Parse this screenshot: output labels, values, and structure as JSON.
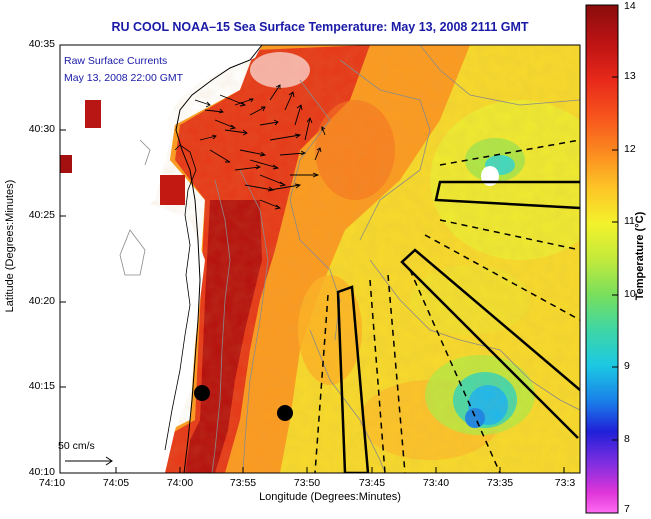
{
  "title": "RU COOL  NOAA–15  Sea Surface Temperature:  May 13, 2008 2111 GMT",
  "legend": {
    "currents_label": "Raw Surface Currents",
    "currents_time": "May 13, 2008 22:00 GMT",
    "scale_label": "50 cm/s"
  },
  "axes": {
    "x_label": "Longitude (Degrees:Minutes)",
    "y_label": "Latitude (Degrees:Minutes)",
    "x_ticks": [
      "74:10",
      "74:05",
      "74:00",
      "73:55",
      "73:50",
      "73:45",
      "73:40",
      "73:35",
      "73:3"
    ],
    "y_ticks": [
      "40:35",
      "40:30",
      "40:25",
      "40:20",
      "40:15",
      "40:10"
    ]
  },
  "colorbar": {
    "label": "Temperature (°C)",
    "min": 7,
    "max": 14,
    "ticks": [
      "14",
      "13",
      "12",
      "11",
      "10",
      "9",
      "8",
      "7"
    ]
  },
  "colors": {
    "title": "#1a1aa8",
    "land": "#ffffff",
    "coast": "#000000"
  }
}
